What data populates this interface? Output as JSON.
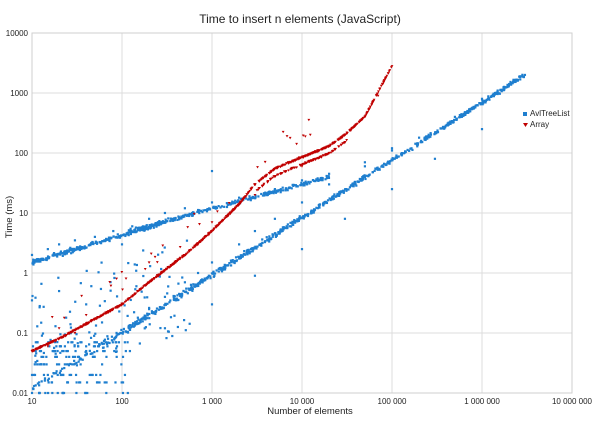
{
  "chart_data": {
    "type": "scatter",
    "title": "Time to insert n elements (JavaScript)",
    "xlabel": "Number of elements",
    "ylabel": "Time (ms)",
    "x_scale": "log",
    "y_scale": "log",
    "xlim": [
      10,
      10000000
    ],
    "ylim": [
      0.01,
      10000
    ],
    "x_ticks": [
      10,
      100,
      1000,
      10000,
      100000,
      1000000,
      10000000
    ],
    "x_tick_labels": [
      "10",
      "100",
      "1 000",
      "10 000",
      "100 000",
      "1 000 000",
      "10 000 000"
    ],
    "y_ticks": [
      0.01,
      0.1,
      1,
      10,
      100,
      1000,
      10000
    ],
    "y_tick_labels": [
      "0.01",
      "0.1",
      "1",
      "10",
      "100",
      "1000",
      "10000"
    ],
    "grid": true,
    "legend_position": "right",
    "series": [
      {
        "name": "AvlTreeList",
        "color": "#1f7fcf",
        "marker": "square",
        "trends": [
          {
            "x": [
              10,
              3000000
            ],
            "y": [
              0.012,
              2000
            ]
          },
          {
            "x": [
              30,
              3000000
            ],
            "y": [
              0.03,
              2000
            ]
          },
          {
            "x": [
              100,
              3000000
            ],
            "y": [
              0.1,
              2000
            ]
          },
          {
            "x": [
              120,
              20000
            ],
            "y": [
              5,
              40
            ]
          },
          {
            "x": [
              10,
              300
            ],
            "y": [
              1.5,
              7
            ]
          }
        ],
        "values": [
          [
            10,
            0.01
          ],
          [
            12,
            0.015
          ],
          [
            15,
            0.02
          ],
          [
            20,
            0.03
          ],
          [
            25,
            0.05
          ],
          [
            30,
            0.04
          ],
          [
            40,
            0.05
          ],
          [
            50,
            0.06
          ],
          [
            70,
            0.08
          ],
          [
            100,
            0.1
          ],
          [
            150,
            0.18
          ],
          [
            200,
            0.25
          ],
          [
            300,
            0.4
          ],
          [
            500,
            0.7
          ],
          [
            700,
            1.0
          ],
          [
            1000,
            1.5
          ],
          [
            2000,
            3
          ],
          [
            3000,
            5
          ],
          [
            5000,
            8
          ],
          [
            10000,
            15
          ],
          [
            20000,
            30
          ],
          [
            50000,
            60
          ],
          [
            100000,
            110
          ],
          [
            200000,
            180
          ],
          [
            500000,
            400
          ],
          [
            1000000,
            800
          ],
          [
            2000000,
            1400
          ],
          [
            3000000,
            2000
          ],
          [
            100,
            3
          ],
          [
            130,
            6
          ],
          [
            200,
            8
          ],
          [
            300,
            10
          ],
          [
            500,
            12
          ],
          [
            1000,
            15
          ],
          [
            2000,
            18
          ],
          [
            5000,
            25
          ],
          [
            10000,
            35
          ],
          [
            20000,
            45
          ],
          [
            50000,
            70
          ],
          [
            100000,
            120
          ],
          [
            300,
            0.12
          ],
          [
            1000,
            0.3
          ],
          [
            3000,
            0.9
          ],
          [
            10000,
            2.5
          ],
          [
            30000,
            8
          ],
          [
            100000,
            25
          ],
          [
            300000,
            80
          ],
          [
            1000000,
            250
          ],
          [
            10,
            2
          ],
          [
            15,
            2.5
          ],
          [
            20,
            3
          ],
          [
            30,
            3.5
          ],
          [
            50,
            4
          ],
          [
            80,
            5
          ],
          [
            1000,
            50
          ],
          [
            10,
            0.35
          ],
          [
            20,
            0.5
          ],
          [
            40,
            0.3
          ],
          [
            60,
            0.15
          ]
        ]
      },
      {
        "name": "Array",
        "color": "#c00000",
        "marker": "triangle-down",
        "trend": {
          "x": [
            10,
            20,
            50,
            100,
            200,
            500,
            1000,
            2000,
            3000,
            5000,
            10000,
            20000,
            30000,
            50000,
            100000
          ],
          "y": [
            0.05,
            0.08,
            0.17,
            0.3,
            0.7,
            2,
            5,
            14,
            30,
            55,
            85,
            130,
            200,
            400,
            2800
          ]
        },
        "values": [
          [
            10,
            0.05
          ],
          [
            15,
            0.06
          ],
          [
            20,
            0.08
          ],
          [
            30,
            0.1
          ],
          [
            50,
            0.17
          ],
          [
            70,
            0.22
          ],
          [
            100,
            0.3
          ],
          [
            150,
            0.5
          ],
          [
            200,
            0.7
          ],
          [
            300,
            1.1
          ],
          [
            500,
            2
          ],
          [
            700,
            3
          ],
          [
            1000,
            5
          ],
          [
            1500,
            9
          ],
          [
            2000,
            14
          ],
          [
            3000,
            30
          ],
          [
            5000,
            55
          ],
          [
            7000,
            70
          ],
          [
            10000,
            85
          ],
          [
            15000,
            105
          ],
          [
            20000,
            130
          ],
          [
            30000,
            200
          ],
          [
            50000,
            400
          ],
          [
            70000,
            900
          ],
          [
            100000,
            2800
          ],
          [
            200,
            1.5
          ],
          [
            1000,
            7
          ],
          [
            5000,
            40
          ],
          [
            10000,
            60
          ],
          [
            20,
            0.12
          ],
          [
            40,
            0.2
          ],
          [
            3000,
            20
          ]
        ]
      }
    ]
  }
}
